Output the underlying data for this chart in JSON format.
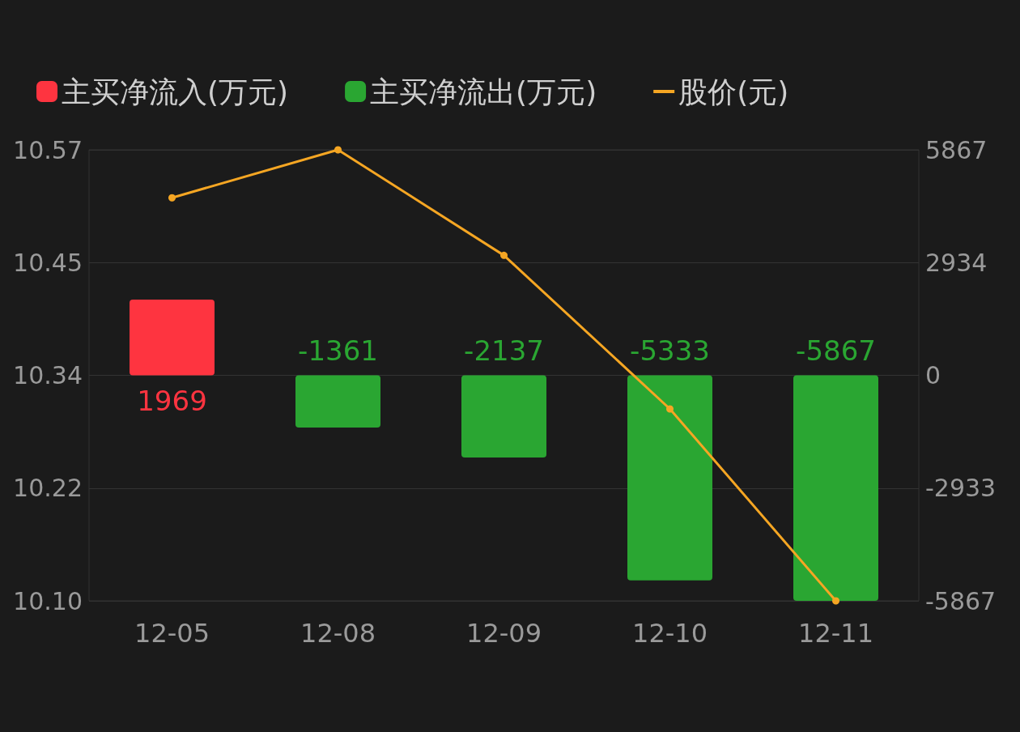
{
  "chart_data": {
    "type": "bar",
    "categories": [
      "12-05",
      "12-08",
      "12-09",
      "12-10",
      "12-11"
    ],
    "series": [
      {
        "name": "主买净流入(万元)",
        "color": "#fe3440",
        "values": [
          1969,
          null,
          null,
          null,
          null
        ],
        "value_labels": [
          "1969",
          null,
          null,
          null,
          null
        ],
        "axis": "y2"
      },
      {
        "name": "主买净流出(万元)",
        "color": "#2aa632",
        "values": [
          null,
          -1361,
          -2137,
          -5333,
          -5867
        ],
        "value_labels": [
          null,
          "-1361",
          "-2137",
          "-5333",
          "-5867"
        ],
        "axis": "y2"
      },
      {
        "name": "股价(元)",
        "type": "line",
        "color": "#f5a623",
        "values": [
          10.52,
          10.57,
          10.46,
          10.3,
          10.1
        ]
      }
    ],
    "ylim": [
      10.1,
      10.57
    ],
    "yticks": [
      {
        "value": 10.1,
        "label": "10.10"
      },
      {
        "value": 10.2175,
        "label": "10.22"
      },
      {
        "value": 10.335,
        "label": "10.34"
      },
      {
        "value": 10.4525,
        "label": "10.45"
      },
      10.57
    ],
    "y2lim": [
      -5867,
      5867
    ],
    "y2ticks": [
      -5867,
      {
        "value": -2933.5,
        "label": "-2933"
      },
      0,
      {
        "value": 2933.5,
        "label": "2934"
      },
      5867
    ],
    "legend": "top",
    "grid": "y",
    "marker": "circle",
    "line_style": "solid"
  }
}
